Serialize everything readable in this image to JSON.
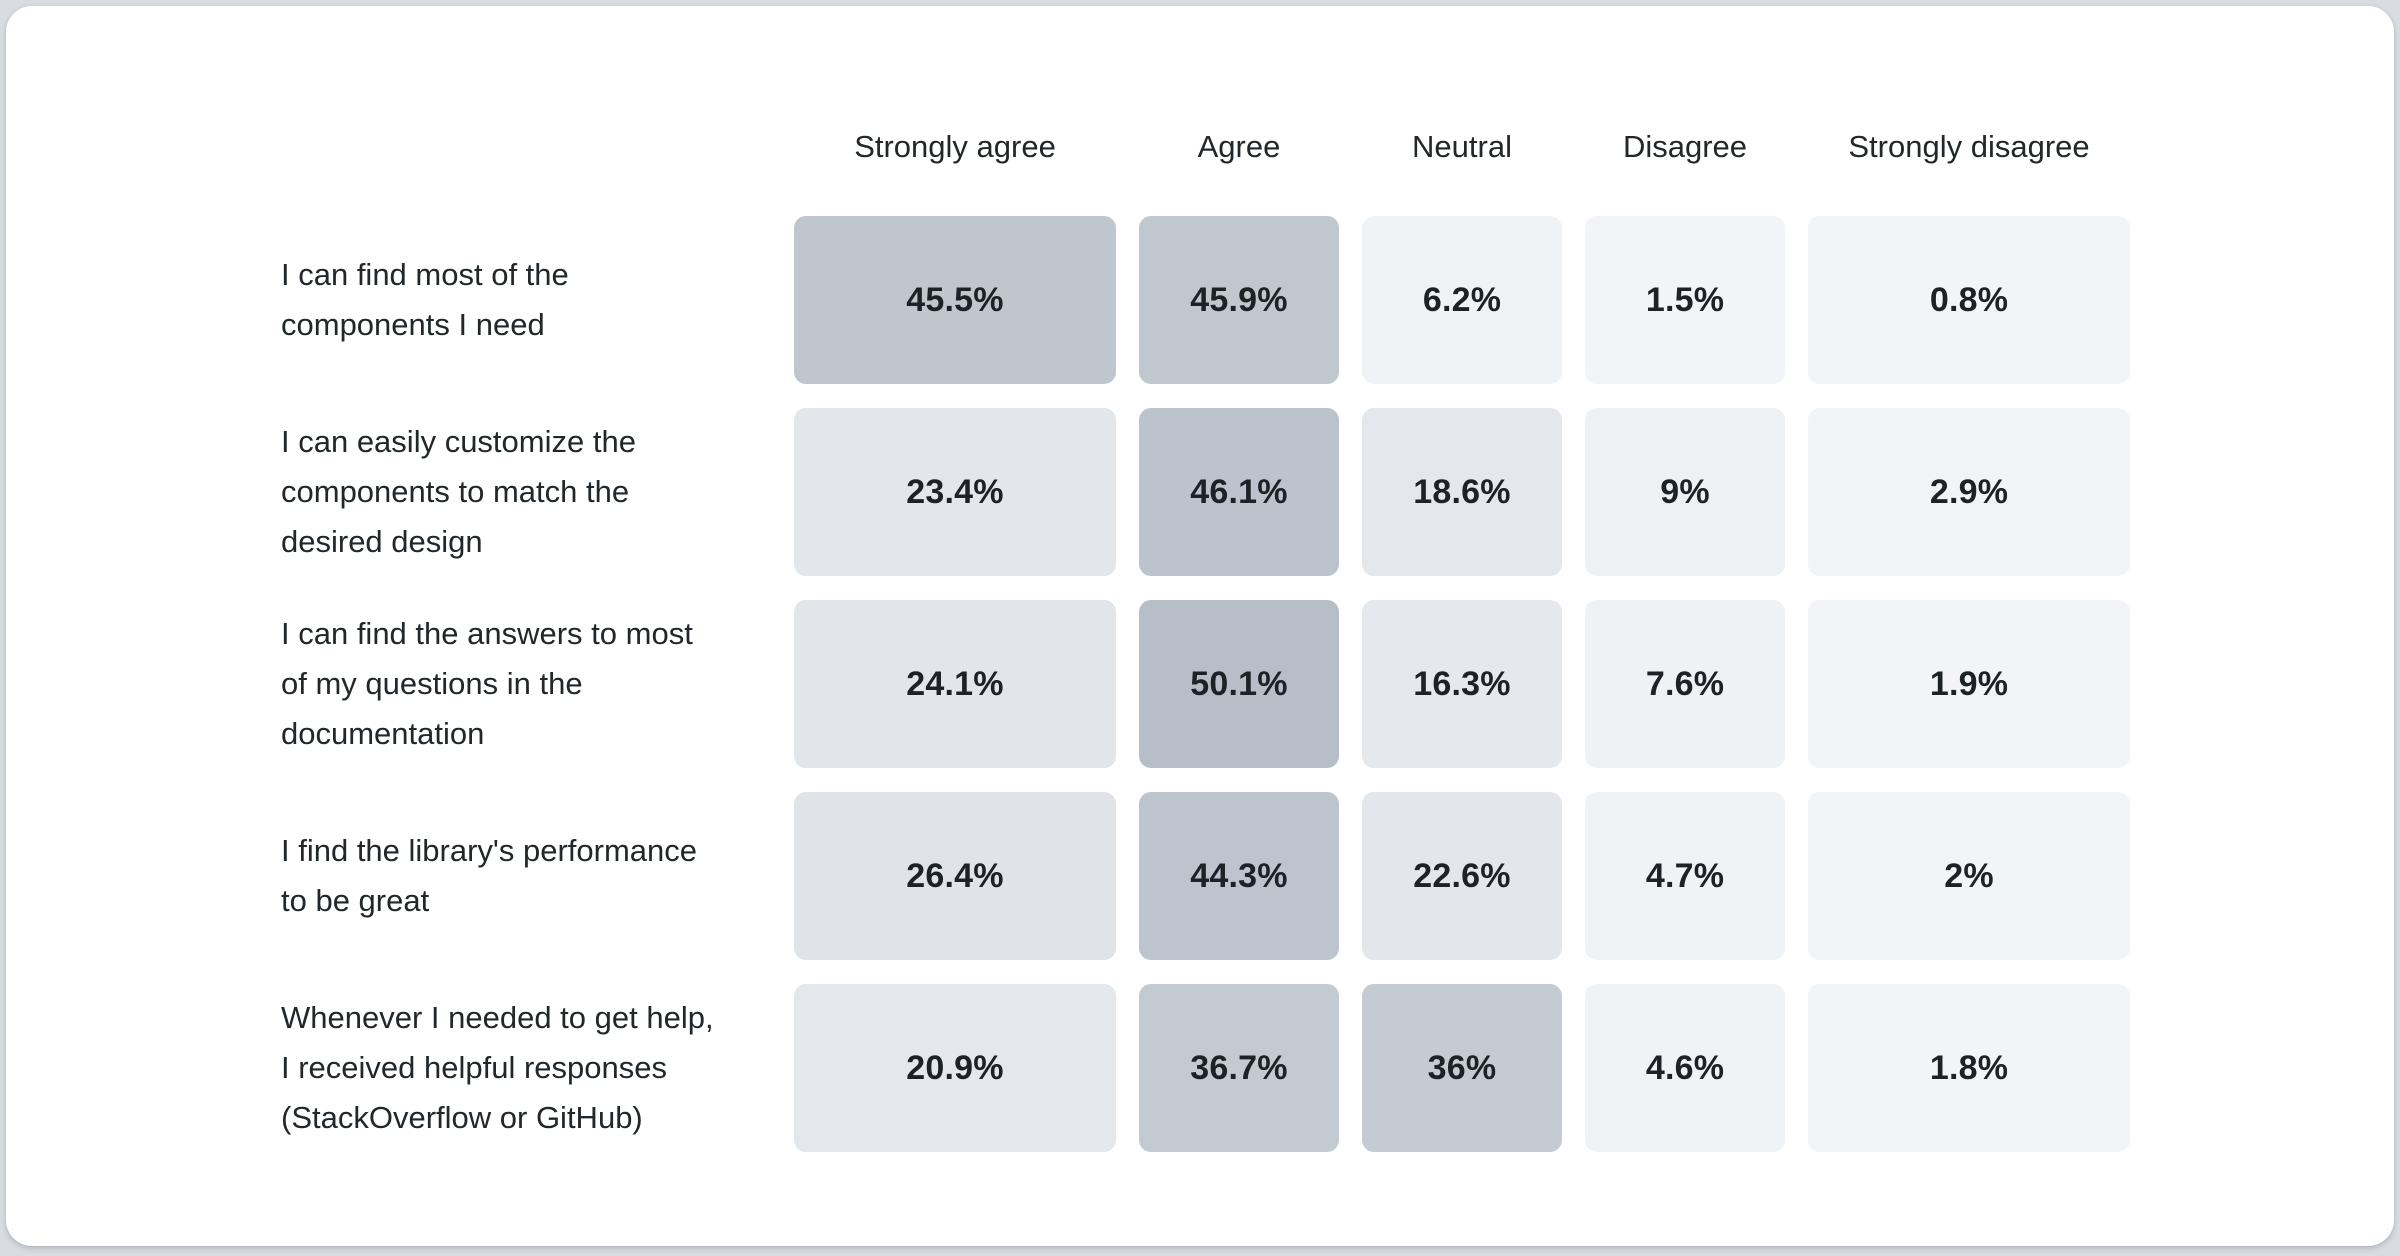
{
  "page": {
    "background": "#d9dde1",
    "card_background": "#ffffff"
  },
  "chart_data": {
    "type": "heatmap",
    "title": "",
    "xlabel": "",
    "ylabel": "",
    "grid": "off",
    "legend_position": "none",
    "columns": [
      "Strongly agree",
      "Agree",
      "Neutral",
      "Disagree",
      "Strongly disagree"
    ],
    "color_scale": {
      "low_value": 0,
      "high_value": 50.1,
      "low_color": "#f2f5f7",
      "high_color": "#b7bec8"
    },
    "rows": [
      {
        "label": "I can find most of the components I need",
        "label_lines": [
          "I can find most of the",
          "components I need"
        ],
        "cells": [
          {
            "display": "45.5%",
            "value": 45.5,
            "bg": "#c0c6cd"
          },
          {
            "display": "45.9%",
            "value": 45.9,
            "bg": "#c1c7ce"
          },
          {
            "display": "6.2%",
            "value": 6.2,
            "bg": "#f0f3f5"
          },
          {
            "display": "1.5%",
            "value": 1.5,
            "bg": "#f2f4f7"
          },
          {
            "display": "0.8%",
            "value": 0.8,
            "bg": "#f2f5f7"
          }
        ]
      },
      {
        "label": "I can easily customize the components to match the desired design",
        "label_lines": [
          "I can easily customize the",
          "components to match the",
          "desired design"
        ],
        "cells": [
          {
            "display": "23.4%",
            "value": 23.4,
            "bg": "#e3e6ea"
          },
          {
            "display": "46.1%",
            "value": 46.1,
            "bg": "#bcc3cc"
          },
          {
            "display": "18.6%",
            "value": 18.6,
            "bg": "#e4e7eb"
          },
          {
            "display": "9%",
            "value": 9,
            "bg": "#eef1f4"
          },
          {
            "display": "2.9%",
            "value": 2.9,
            "bg": "#f1f4f6"
          }
        ]
      },
      {
        "label": "I can find the answers to most of my questions in the documentation",
        "label_lines": [
          "I can find the answers to most",
          "of my questions in the",
          "documentation"
        ],
        "cells": [
          {
            "display": "24.1%",
            "value": 24.1,
            "bg": "#e2e5e9"
          },
          {
            "display": "50.1%",
            "value": 50.1,
            "bg": "#b7bec8"
          },
          {
            "display": "16.3%",
            "value": 16.3,
            "bg": "#e5e8ec"
          },
          {
            "display": "7.6%",
            "value": 7.6,
            "bg": "#eff2f5"
          },
          {
            "display": "1.9%",
            "value": 1.9,
            "bg": "#f2f4f7"
          }
        ]
      },
      {
        "label": "I find the library's performance to be great",
        "label_lines": [
          "I find the library's performance",
          "to be great"
        ],
        "cells": [
          {
            "display": "26.4%",
            "value": 26.4,
            "bg": "#e0e3e8"
          },
          {
            "display": "44.3%",
            "value": 44.3,
            "bg": "#bdc4cd"
          },
          {
            "display": "22.6%",
            "value": 22.6,
            "bg": "#e3e6ea"
          },
          {
            "display": "4.7%",
            "value": 4.7,
            "bg": "#f0f3f6"
          },
          {
            "display": "2%",
            "value": 2,
            "bg": "#f2f5f7"
          }
        ]
      },
      {
        "label": "Whenever I needed to get help, I received helpful responses (StackOverflow or GitHub)",
        "label_lines": [
          "Whenever I needed to get help,",
          "I received helpful responses",
          "(StackOverflow or GitHub)"
        ],
        "cells": [
          {
            "display": "20.9%",
            "value": 20.9,
            "bg": "#e4e7eb"
          },
          {
            "display": "36.7%",
            "value": 36.7,
            "bg": "#c3cad2"
          },
          {
            "display": "36%",
            "value": 36,
            "bg": "#c4cbd3"
          },
          {
            "display": "4.6%",
            "value": 4.6,
            "bg": "#f0f3f6"
          },
          {
            "display": "1.8%",
            "value": 1.8,
            "bg": "#f2f5f7"
          }
        ]
      }
    ]
  }
}
